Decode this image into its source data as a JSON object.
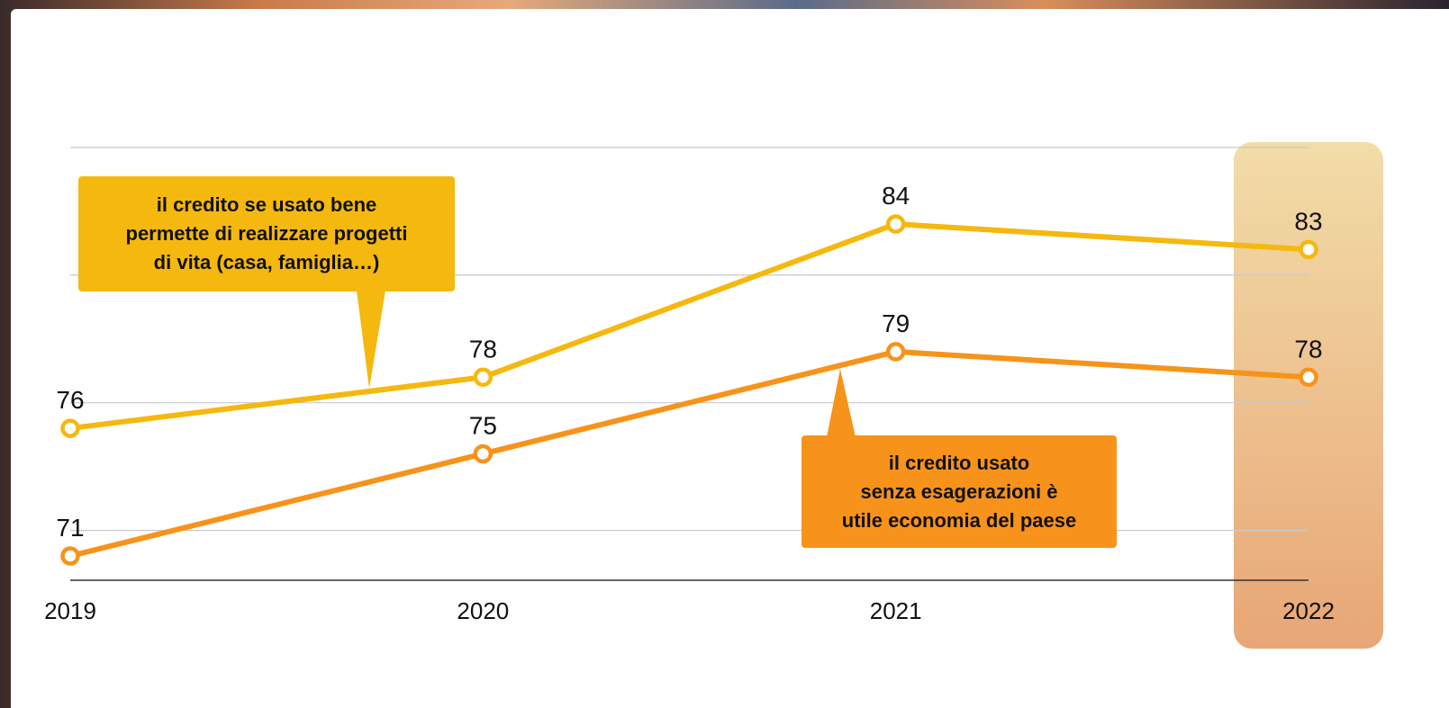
{
  "chart_data": {
    "type": "line",
    "categories": [
      "2019",
      "2020",
      "2021",
      "2022"
    ],
    "highlighted_category": "2022",
    "series": [
      {
        "color": "#F5B80F",
        "values": [
          76,
          78,
          84,
          83
        ],
        "callout_lines": [
          "il credito se usato bene",
          "permette di realizzare progetti",
          "di vita (casa, famiglia…)"
        ]
      },
      {
        "color": "#F7931A",
        "values": [
          71,
          75,
          79,
          78
        ],
        "callout_lines": [
          "il credito usato",
          "senza esagerazioni è",
          "utile economia del paese"
        ]
      }
    ],
    "ylim": [
      70,
      88
    ],
    "grid": true,
    "colors": {
      "highlight_top": "#F2DDA8",
      "highlight_bottom": "#E8A676"
    }
  }
}
